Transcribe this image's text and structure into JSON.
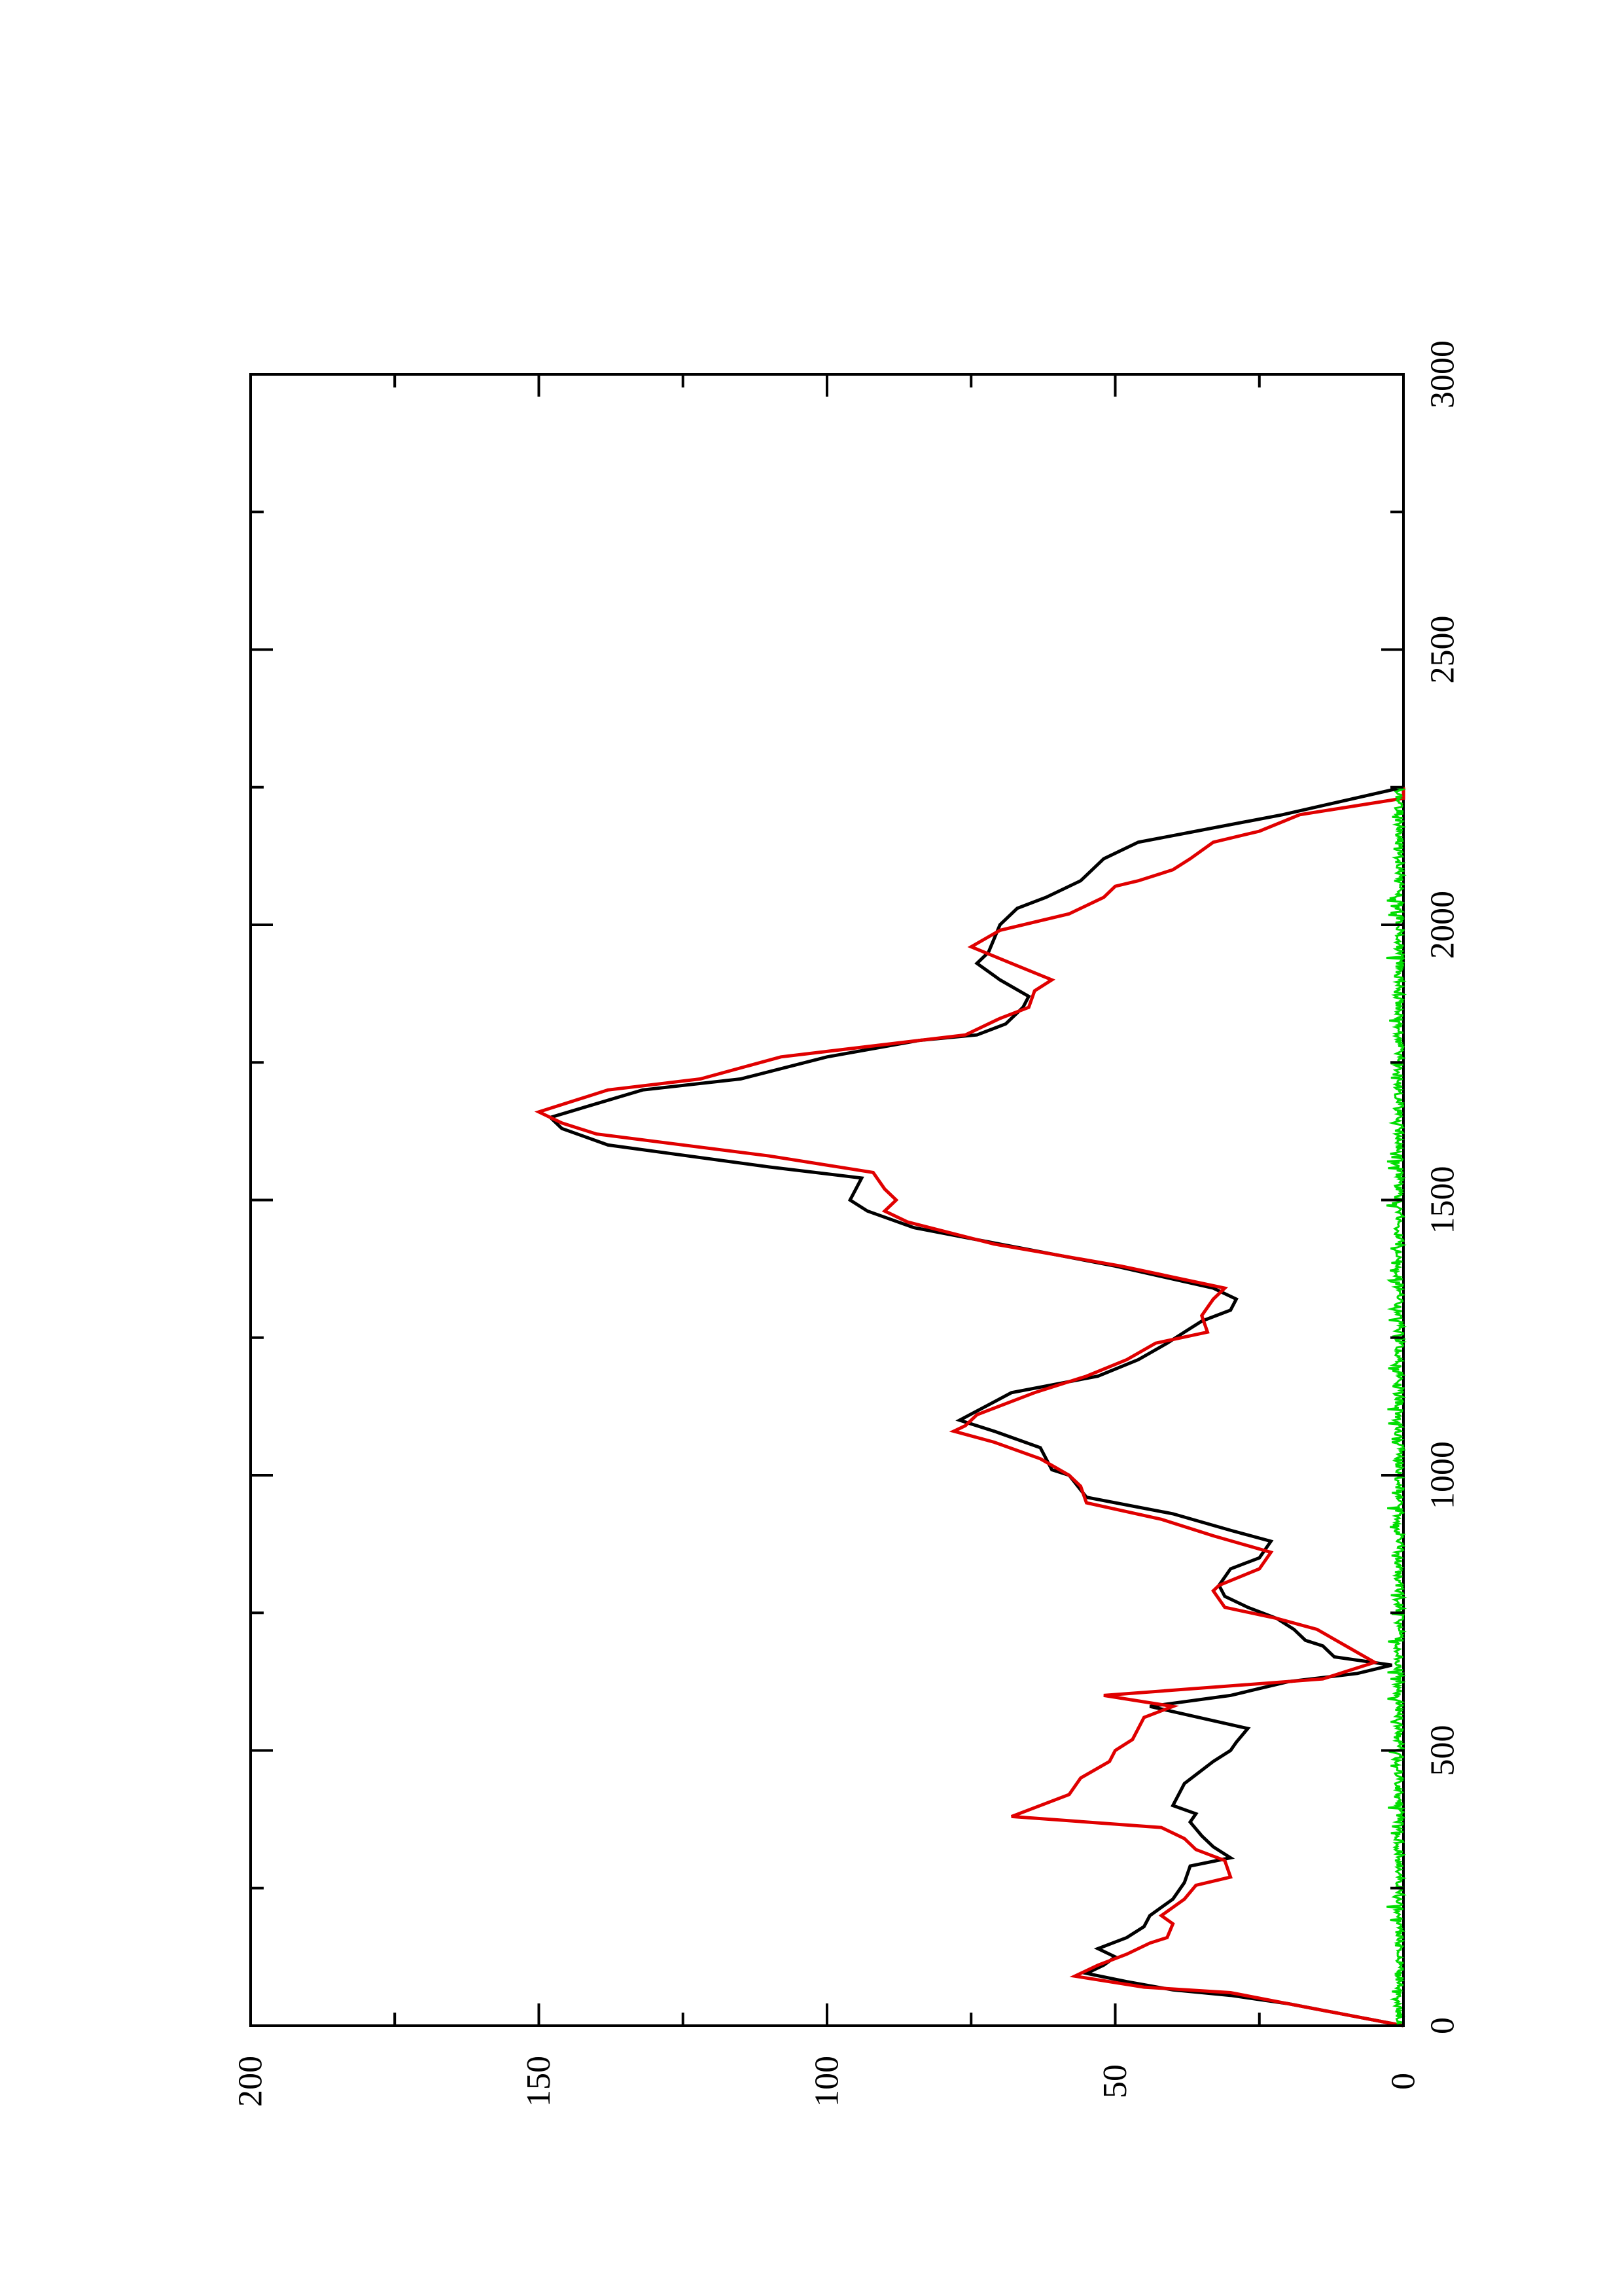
{
  "chart_data": {
    "type": "line",
    "title": "",
    "xlabel": "",
    "ylabel": "",
    "orientation": "rotated-90-ccw",
    "xlim": [
      0,
      3000
    ],
    "ylim": [
      0,
      200
    ],
    "x_ticks": [
      0,
      500,
      1000,
      1500,
      2000,
      2500,
      3000
    ],
    "y_ticks": [
      0,
      50,
      100,
      150,
      200
    ],
    "x_minor_step": 250,
    "y_minor_step": 25,
    "grid": false,
    "legend": "none",
    "series": [
      {
        "color": "#000000",
        "x": [
          0,
          20,
          40,
          55,
          65,
          80,
          95,
          110,
          125,
          140,
          160,
          180,
          200,
          230,
          260,
          290,
          305,
          325,
          345,
          370,
          385,
          400,
          440,
          480,
          500,
          515,
          540,
          580,
          600,
          625,
          640,
          655,
          670,
          690,
          700,
          720,
          740,
          760,
          780,
          800,
          830,
          850,
          880,
          900,
          930,
          960,
          1000,
          1010,
          1050,
          1080,
          1100,
          1150,
          1180,
          1210,
          1240,
          1260,
          1280,
          1300,
          1320,
          1340,
          1380,
          1420,
          1450,
          1480,
          1500,
          1520,
          1540,
          1560,
          1600,
          1630,
          1650,
          1700,
          1720,
          1760,
          1790,
          1800,
          1820,
          1850,
          1870,
          1900,
          1930,
          1950,
          2000,
          2030,
          2050,
          2080,
          2120,
          2150,
          2170,
          2200,
          2250
        ],
        "values": [
          0,
          10,
          20,
          30,
          40,
          48,
          55,
          52,
          50,
          53,
          48,
          45,
          44,
          40,
          38,
          37,
          30,
          33,
          35,
          37,
          36,
          40,
          38,
          33,
          30,
          29,
          27,
          44,
          30,
          20,
          8,
          2,
          12,
          14,
          17,
          19,
          22,
          27,
          31,
          32,
          30,
          25,
          23,
          30,
          40,
          55,
          58,
          61,
          63,
          71,
          77,
          68,
          53,
          46,
          41,
          38,
          35,
          30,
          29,
          33,
          50,
          70,
          85,
          93,
          96,
          95,
          94,
          110,
          138,
          146,
          148,
          132,
          115,
          100,
          84,
          74,
          69,
          66,
          65,
          70,
          74,
          72,
          70,
          67,
          62,
          56,
          52,
          46,
          36,
          21,
          0
        ]
      },
      {
        "color": "#e00000",
        "x": [
          0,
          20,
          40,
          60,
          70,
          90,
          110,
          130,
          150,
          160,
          185,
          200,
          230,
          255,
          270,
          300,
          320,
          340,
          360,
          380,
          420,
          450,
          480,
          500,
          520,
          540,
          560,
          580,
          600,
          630,
          660,
          690,
          720,
          740,
          760,
          790,
          800,
          830,
          860,
          890,
          920,
          950,
          980,
          1000,
          1030,
          1060,
          1080,
          1090,
          1110,
          1150,
          1180,
          1210,
          1240,
          1260,
          1290,
          1320,
          1340,
          1380,
          1420,
          1460,
          1480,
          1500,
          1520,
          1550,
          1580,
          1620,
          1640,
          1660,
          1700,
          1720,
          1760,
          1790,
          1800,
          1830,
          1850,
          1880,
          1900,
          1930,
          1960,
          1990,
          2020,
          2050,
          2070,
          2080,
          2100,
          2120,
          2150,
          2170,
          2200,
          2230,
          2250
        ],
        "values": [
          0,
          10,
          20,
          30,
          45,
          57,
          53,
          48,
          44,
          41,
          40,
          42,
          38,
          36,
          30,
          31,
          36,
          38,
          42,
          68,
          58,
          56,
          51,
          50,
          47,
          46,
          45,
          40,
          52,
          14,
          5,
          10,
          15,
          22,
          31,
          33,
          32,
          25,
          23,
          33,
          42,
          55,
          56,
          58,
          63,
          71,
          78,
          76,
          74,
          64,
          55,
          48,
          43,
          34,
          35,
          33,
          31,
          49,
          71,
          86,
          90,
          88,
          90,
          92,
          110,
          140,
          146,
          150,
          138,
          122,
          108,
          84,
          76,
          70,
          65,
          64,
          61,
          68,
          75,
          70,
          58,
          52,
          50,
          46,
          40,
          37,
          33,
          25,
          18,
          0,
          0
        ]
      },
      {
        "color": "#00dd00",
        "x": [
          0,
          2250
        ],
        "values": [
          0,
          0
        ],
        "noise_amplitude": 1.5
      }
    ]
  }
}
